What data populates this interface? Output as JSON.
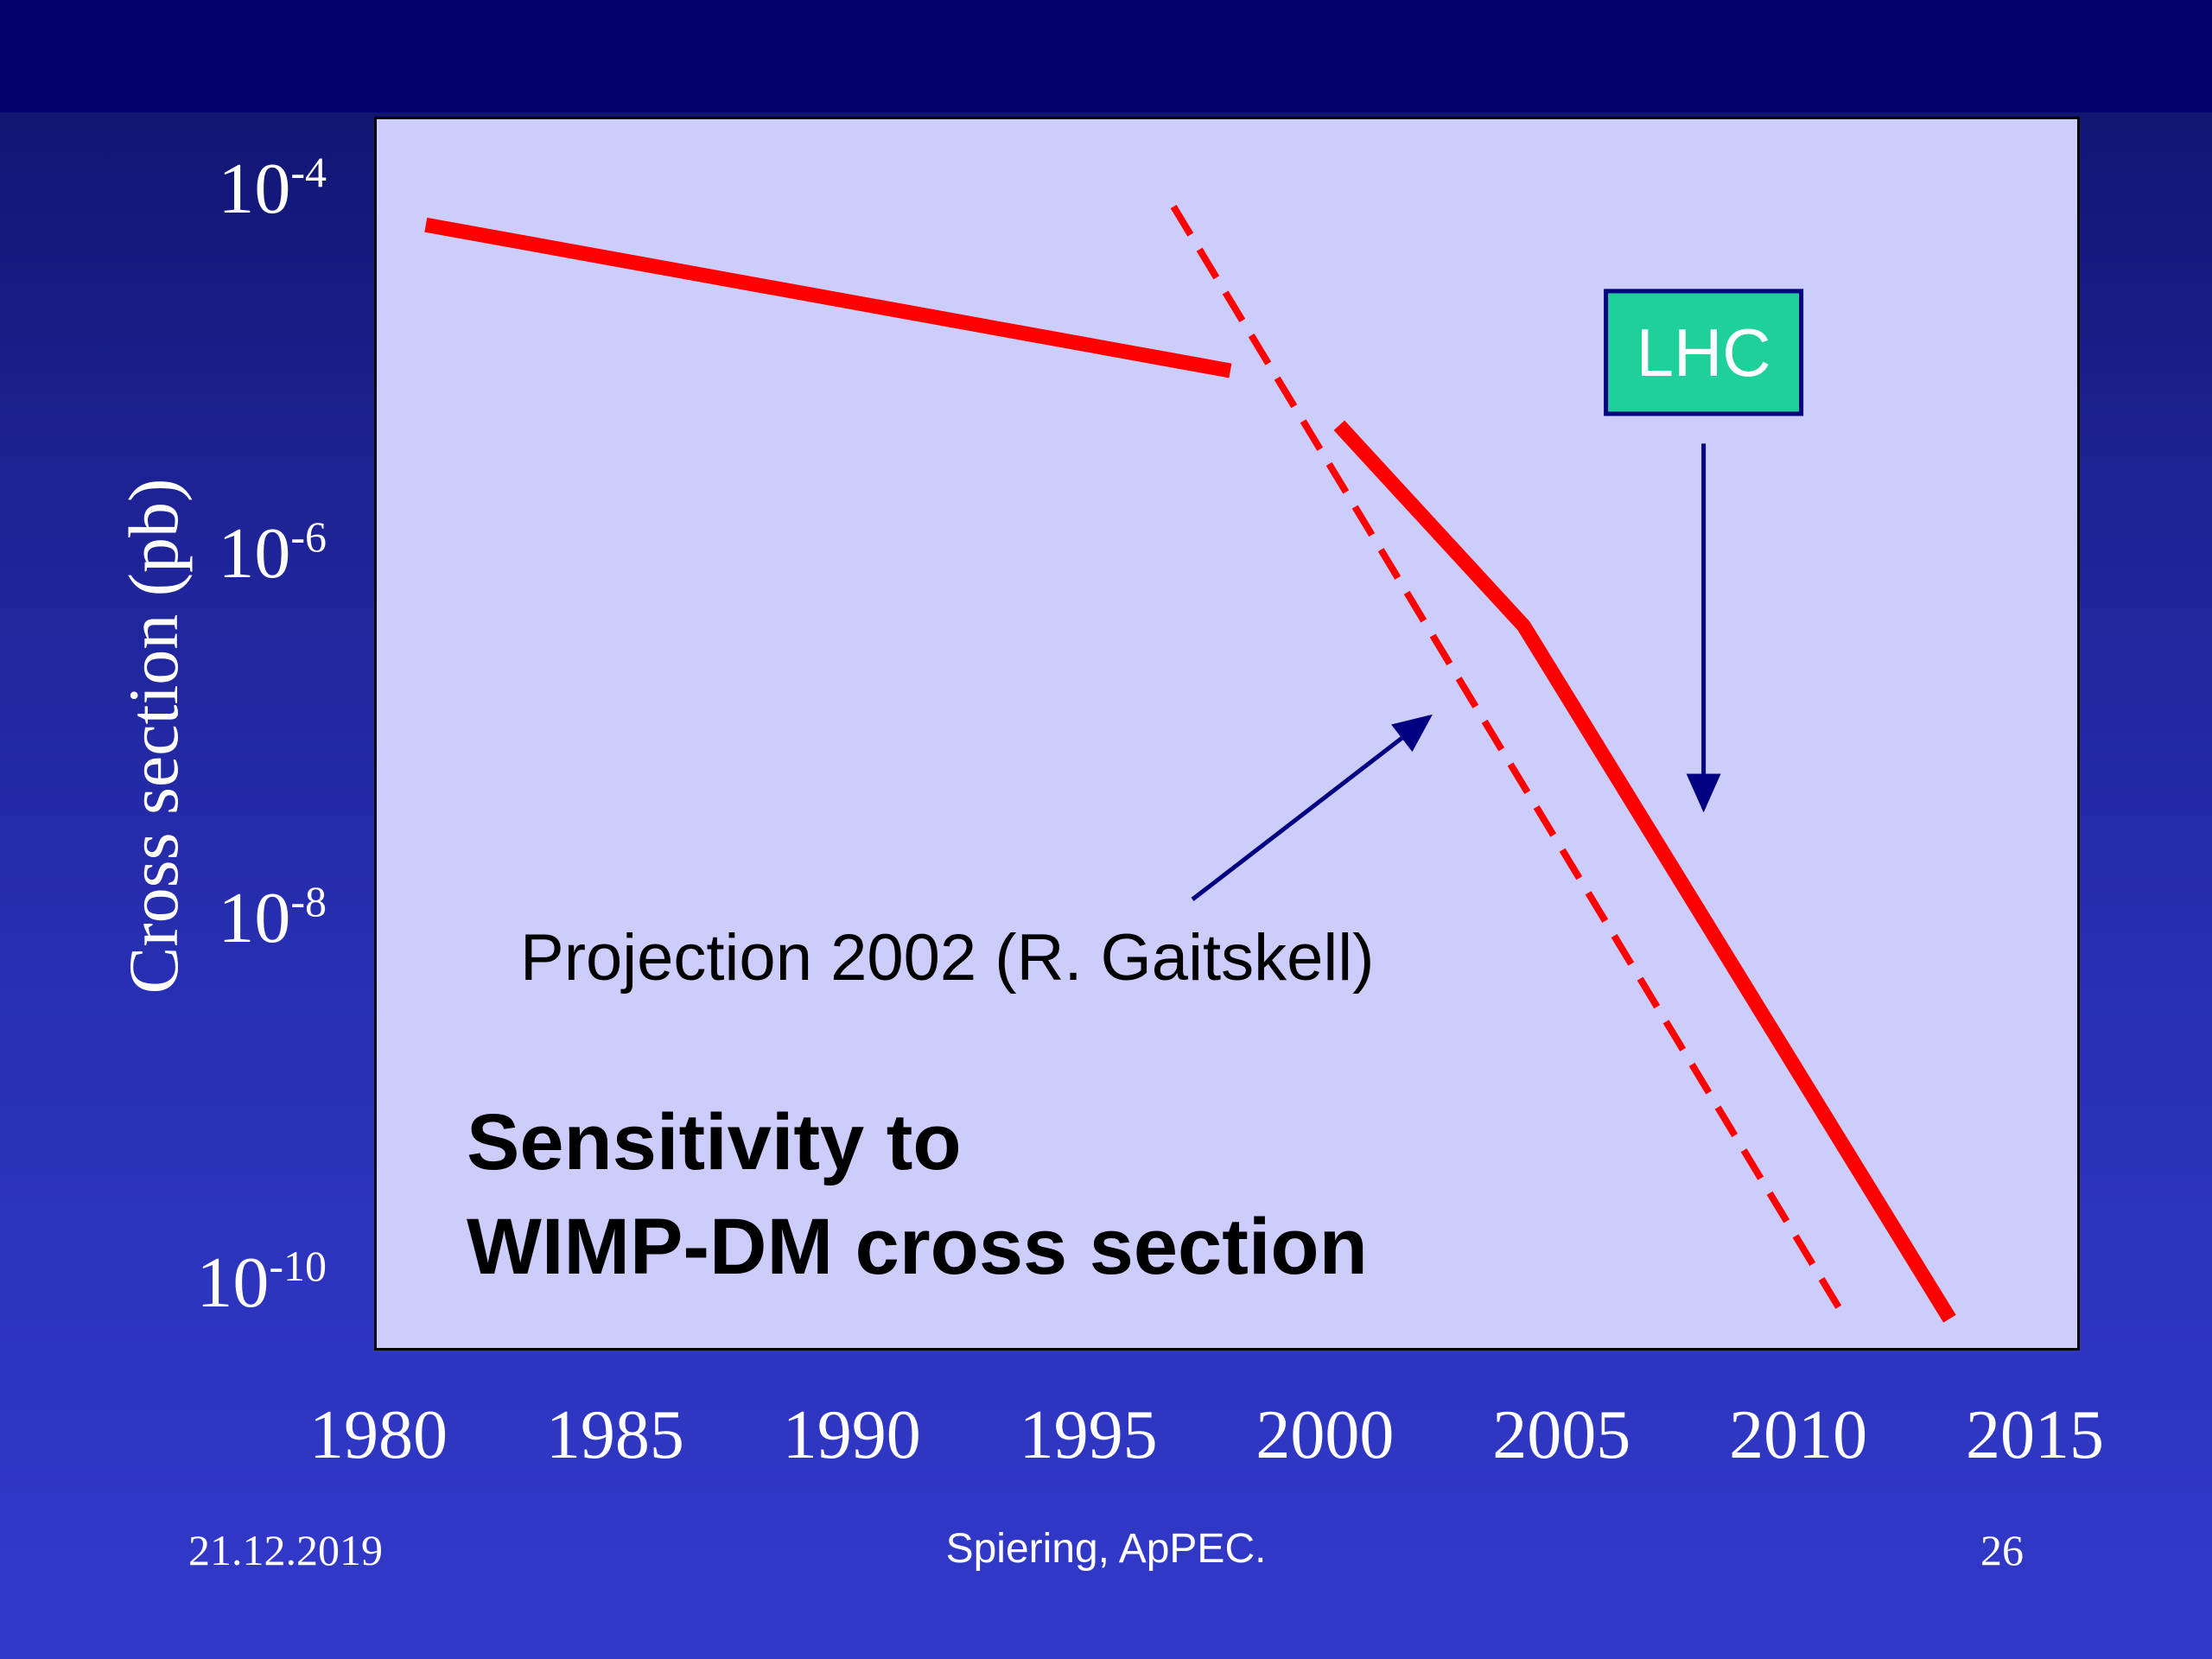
{
  "chart_data": {
    "type": "line",
    "title": "Sensitivity to WIMP-DM cross section",
    "title_lines": [
      "Sensitivity to",
      "WIMP-DM cross section"
    ],
    "ylabel": "Cross section (pb)",
    "xlabel": "",
    "yscale": "log",
    "xlim": [
      1980,
      2015
    ],
    "ylim": [
      -10.5,
      -3.5
    ],
    "x_ticks": [
      "1980",
      "1985",
      "1990",
      "1995",
      "2000",
      "2005",
      "2010",
      "2015"
    ],
    "y_ticks": [
      {
        "base": "10",
        "exp": "-4",
        "value": -4
      },
      {
        "base": "10",
        "exp": "-6",
        "value": -6
      },
      {
        "base": "10",
        "exp": "-8",
        "value": -8
      },
      {
        "base": "10",
        "exp": "-10",
        "value": -10
      }
    ],
    "grid": false,
    "series": [
      {
        "style": "solid",
        "color": "#ff0000",
        "segments": [
          [
            [
              1981,
              -4.2
            ],
            [
              1998,
              -5.0
            ]
          ],
          [
            [
              2000.3,
              -5.3
            ],
            [
              2004.2,
              -6.4
            ],
            [
              2013.2,
              -10.2
            ]
          ]
        ]
      },
      {
        "style": "dashed",
        "color": "#ff0000",
        "segments": [
          [
            [
              1996.8,
              -4.1
            ],
            [
              2011,
              -10.2
            ]
          ]
        ]
      }
    ],
    "annotations": [
      {
        "text": "Projection 2002 (R. Gaitskell)",
        "arrow_from": [
          1997.2,
          -7.9
        ],
        "arrow_to": [
          2002.2,
          -6.9
        ]
      },
      {
        "text": "LHC",
        "box_color": "#1fd09a",
        "box_center": [
          2008,
          -4.9
        ],
        "arrow_from": [
          2008,
          -5.4
        ],
        "arrow_to": [
          2008,
          -7.4
        ]
      }
    ]
  },
  "footer": {
    "date": "21.12.2019",
    "center": "Spiering, ApPEC.",
    "page": "26"
  }
}
